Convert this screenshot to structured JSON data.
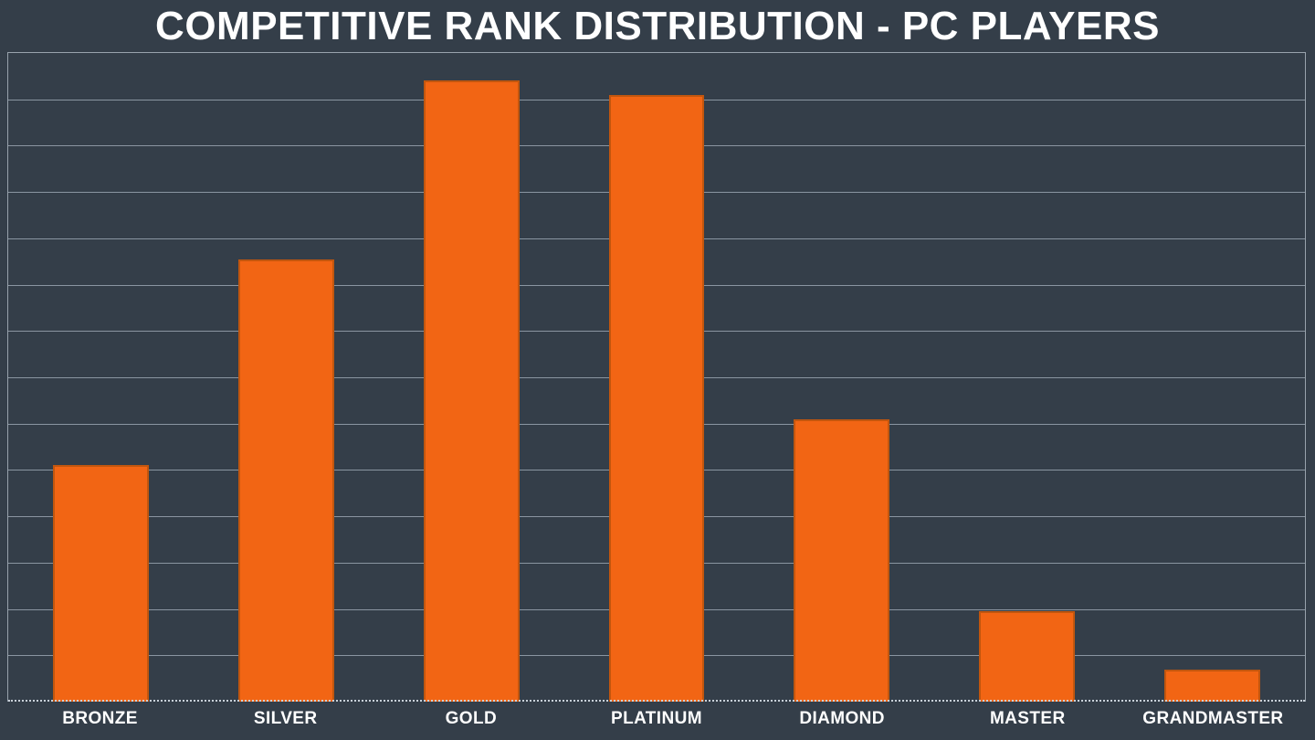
{
  "chart_data": {
    "type": "bar",
    "title": "COMPETITIVE RANK DISTRIBUTION - PC PLAYERS",
    "categories": [
      "BRONZE",
      "SILVER",
      "GOLD",
      "PLATINUM",
      "DIAMOND",
      "MASTER",
      "GRANDMASTER"
    ],
    "values": [
      10.2,
      19.1,
      26.8,
      26.2,
      12.2,
      3.9,
      1.4
    ],
    "xlabel": "",
    "ylabel": "",
    "ylim": [
      0,
      28
    ],
    "gridline_step": 2,
    "gridline_rows": 14,
    "grid": "horizontal",
    "legend": "none",
    "colors": {
      "background": "#343E49",
      "bar_fill": "#F26514",
      "bar_edge": "#C2560E",
      "gridline": "#8A95A1",
      "axis_border": "#98A2AC",
      "baseline_dotted": "#C9D1D9",
      "text": "#FFFFFF"
    }
  }
}
